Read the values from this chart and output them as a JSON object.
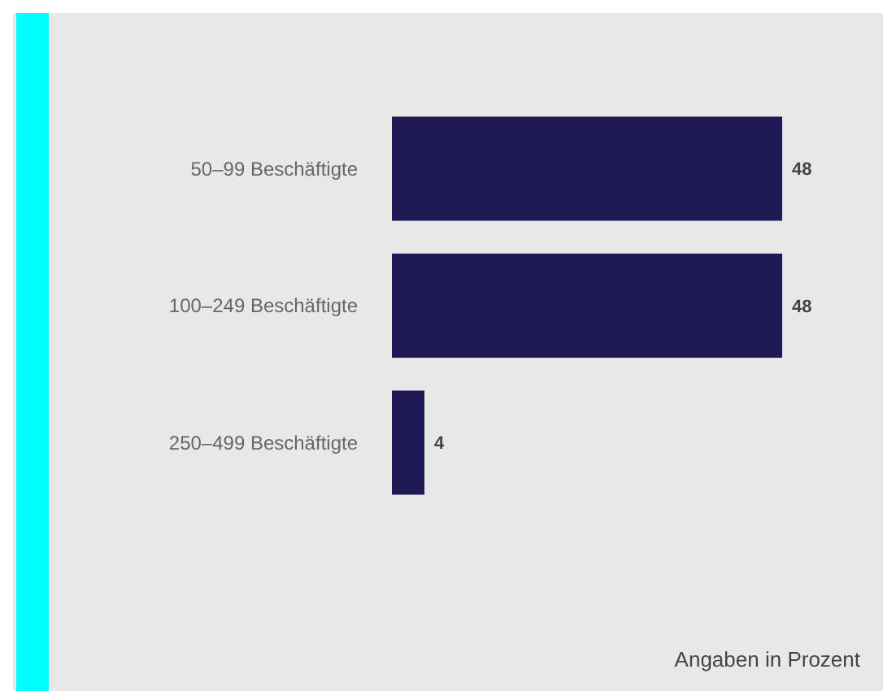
{
  "chart_data": {
    "type": "bar",
    "orientation": "horizontal",
    "categories": [
      "50–99 Beschäftigte",
      "100–249 Beschäftigte",
      "250–499 Beschäftigte"
    ],
    "values": [
      48,
      48,
      4
    ],
    "color": "#1f1a56",
    "data_labels": true,
    "annotations": [
      "Angaben in Prozent"
    ]
  }
}
